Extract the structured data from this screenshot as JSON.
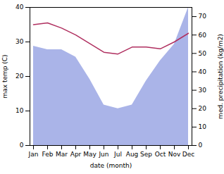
{
  "chart_data": {
    "type": "line",
    "categories": [
      "Jan",
      "Feb",
      "Mar",
      "Apr",
      "May",
      "Jun",
      "Jul",
      "Aug",
      "Sep",
      "Oct",
      "Nov",
      "Dec"
    ],
    "xlabel": "date (month)",
    "ylabel": "max temp (C)",
    "y2label": "med. precipitation (kg/m2)",
    "ylim": [
      0,
      40
    ],
    "yticks": [
      0,
      10,
      20,
      30,
      40
    ],
    "y2lim": [
      0,
      75
    ],
    "y2ticks": [
      0,
      10,
      20,
      30,
      40,
      50,
      60,
      70
    ],
    "grid": false,
    "series": [
      {
        "type": "area",
        "axis": "y2",
        "color": "#aab4e8",
        "values": [
          54,
          52,
          52,
          48,
          36,
          22,
          20,
          22,
          35,
          46,
          55,
          75
        ]
      },
      {
        "type": "line",
        "axis": "y",
        "color": "#b03060",
        "values": [
          35,
          35.5,
          34,
          32,
          29.5,
          27,
          26.5,
          28.5,
          28.5,
          28,
          30,
          32.5
        ]
      }
    ]
  }
}
